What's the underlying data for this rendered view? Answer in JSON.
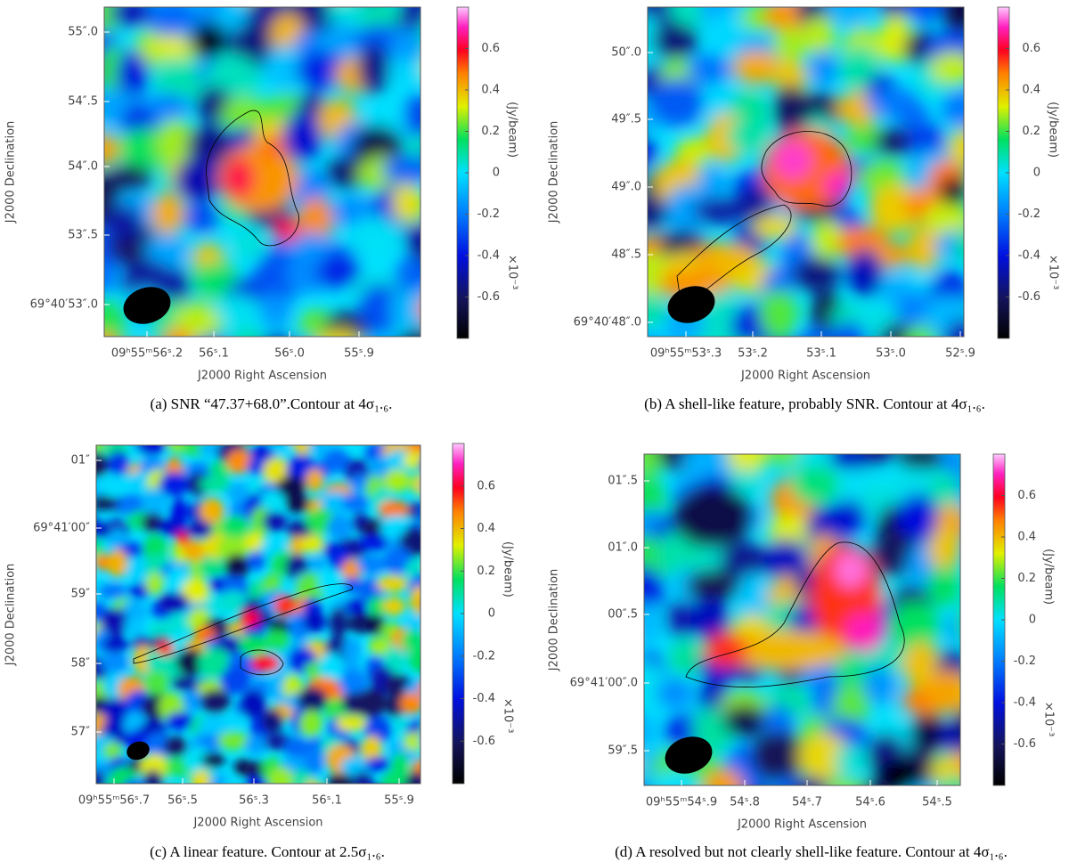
{
  "axes": {
    "x_title": "J2000 Right Ascension",
    "y_title": "J2000 Declination",
    "colorbar_label": "(Jy/beam)",
    "colorbar_exponent": "×10⁻³",
    "colorbar_range": [
      -0.8,
      0.8
    ],
    "colorbar_ticks": [
      0.6,
      0.4,
      0.2,
      0,
      -0.2,
      -0.4,
      -0.6
    ]
  },
  "panels": [
    {
      "dec_ticks": [
        "55″.0",
        "54″.5",
        "54″.0",
        "53″.5",
        "69°40′53″.0"
      ],
      "ra_ticks": [
        "09ʰ55ᵐ56ˢ.2",
        "56ˢ.1",
        "56ˢ.0",
        "55ˢ.9"
      ],
      "caption": "(a)  SNR “47.37+68.0”.Contour at 4σ₁.₆."
    },
    {
      "dec_ticks": [
        "50″.0",
        "49″.5",
        "49″.0",
        "48″.5",
        "69°40′48″.0"
      ],
      "ra_ticks": [
        "09ʰ55ᵐ53ˢ.3",
        "53ˢ.2",
        "53ˢ.1",
        "53ˢ.0",
        "52ˢ.9"
      ],
      "caption": "(b)  A shell-like feature, probably SNR. Contour at 4σ₁.₆."
    },
    {
      "dec_ticks": [
        "01″",
        "69°41′00″",
        "59″",
        "58″",
        "57″"
      ],
      "ra_ticks": [
        "09ʰ55ᵐ56ˢ.7",
        "56ˢ.5",
        "56ˢ.3",
        "56ˢ.1",
        "55ˢ.9"
      ],
      "caption": "(c)  A linear feature. Contour at 2.5σ₁.₆."
    },
    {
      "dec_ticks": [
        "01″.5",
        "01″.0",
        "00″.5",
        "69°41′00″.0",
        "59″.5"
      ],
      "ra_ticks": [
        "09ʰ55ᵐ54ˢ.9",
        "54ˢ.8",
        "54ˢ.7",
        "54ˢ.6",
        "54ˢ.5"
      ],
      "caption": "(d)  A resolved but not clearly shell-like feature. Contour at 4σ₁.₆."
    }
  ]
}
